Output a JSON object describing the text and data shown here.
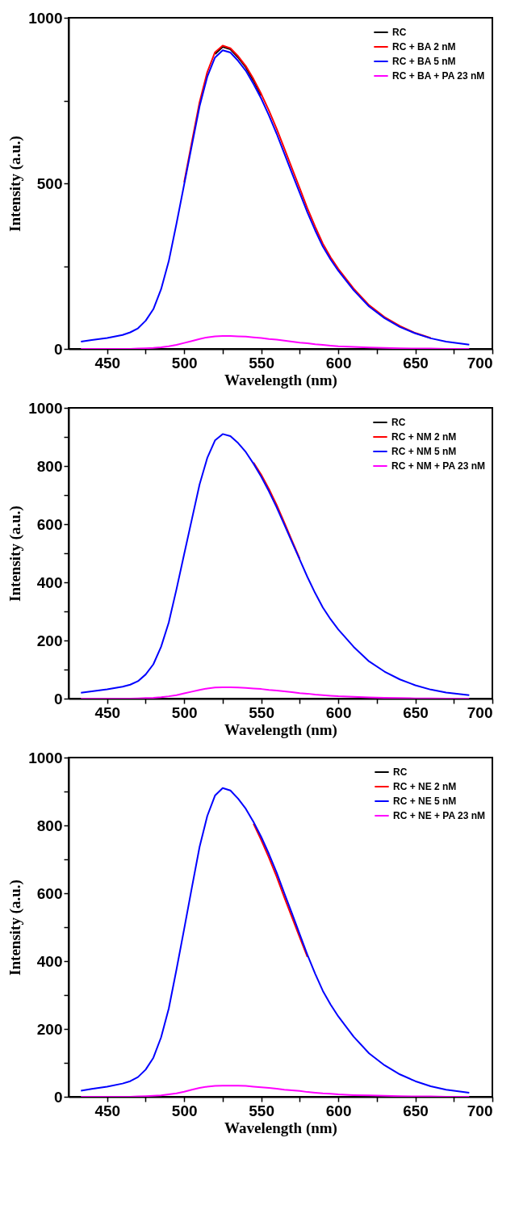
{
  "chart_data": [
    {
      "type": "line",
      "xlabel": "Wavelength (nm)",
      "ylabel": "Intensity (a.u.)",
      "legend": "top right",
      "xlim": [
        425,
        700
      ],
      "ylim": [
        0,
        1000
      ],
      "xticks": [
        450,
        {
          "value": 475,
          "label": null
        },
        500,
        {
          "value": 525,
          "label": null
        },
        550,
        {
          "value": 575,
          "label": null
        },
        600,
        {
          "value": 625,
          "label": null
        },
        650,
        {
          "value": 675,
          "label": null
        },
        700
      ],
      "yticks": [
        0,
        {
          "value": 250,
          "label": null
        },
        500,
        {
          "value": 750,
          "label": null
        },
        1000
      ],
      "x": [
        433,
        440,
        450,
        460,
        465,
        470,
        475,
        480,
        485,
        490,
        495,
        500,
        505,
        510,
        515,
        520,
        525,
        530,
        535,
        540,
        545,
        550,
        555,
        560,
        565,
        570,
        575,
        580,
        585,
        590,
        595,
        600,
        610,
        620,
        630,
        640,
        650,
        660,
        670,
        685
      ],
      "series": [
        {
          "name": "RC",
          "color": "#000000",
          "values": [
            null,
            null,
            null,
            null,
            null,
            null,
            null,
            null,
            null,
            null,
            null,
            null,
            null,
            null,
            null,
            890,
            912,
            905,
            880,
            850,
            810,
            765,
            null,
            null,
            null,
            null,
            null,
            null,
            null,
            null,
            null,
            null,
            null,
            null,
            null,
            null,
            null,
            null,
            null,
            null
          ]
        },
        {
          "name": "RC + BA 2 nM",
          "color": "#ff0000",
          "values": [
            null,
            null,
            null,
            null,
            null,
            null,
            null,
            null,
            null,
            null,
            null,
            503,
            625,
            745,
            836,
            896,
            916,
            908,
            884,
            854,
            815,
            770,
            720,
            665,
            605,
            545,
            485,
            424,
            369,
            318,
            277,
            242,
            182,
            132,
            96,
            69,
            48,
            33,
            null,
            null
          ]
        },
        {
          "name": "RC + BA 5 nM",
          "color": "#0000ff",
          "values": [
            22,
            27,
            33,
            42,
            50,
            62,
            85,
            120,
            180,
            265,
            378,
            497,
            615,
            733,
            822,
            880,
            902,
            895,
            870,
            840,
            800,
            756,
            705,
            650,
            590,
            530,
            471,
            412,
            358,
            309,
            270,
            236,
            177,
            128,
            93,
            66,
            47,
            32,
            22,
            13
          ]
        },
        {
          "name": "RC + BA + PA 23 nM",
          "color": "#ff00ff",
          "values": [
            0,
            0,
            0,
            0,
            0,
            1,
            2,
            3,
            5,
            8,
            12,
            18,
            24,
            30,
            35,
            38,
            39,
            39,
            38,
            37,
            35,
            33,
            30,
            28,
            25,
            22,
            19,
            17,
            14,
            12,
            10,
            8,
            6,
            4,
            3,
            2,
            1,
            1,
            0,
            0
          ]
        }
      ]
    },
    {
      "type": "line",
      "xlabel": "Wavelength (nm)",
      "ylabel": "Intensity (a.u.)",
      "legend": "top right",
      "xlim": [
        425,
        700
      ],
      "ylim": [
        0,
        1000
      ],
      "xticks": [
        450,
        {
          "value": 475,
          "label": null
        },
        500,
        {
          "value": 525,
          "label": null
        },
        550,
        {
          "value": 575,
          "label": null
        },
        600,
        {
          "value": 625,
          "label": null
        },
        650,
        {
          "value": 675,
          "label": null
        },
        700
      ],
      "yticks": [
        0,
        {
          "value": 100,
          "label": null
        },
        200,
        {
          "value": 300,
          "label": null
        },
        400,
        {
          "value": 500,
          "label": null
        },
        600,
        {
          "value": 700,
          "label": null
        },
        800,
        {
          "value": 900,
          "label": null
        },
        1000
      ],
      "x": [
        433,
        440,
        450,
        460,
        465,
        470,
        475,
        480,
        485,
        490,
        495,
        500,
        505,
        510,
        515,
        520,
        525,
        530,
        535,
        540,
        545,
        550,
        555,
        560,
        565,
        570,
        575,
        580,
        585,
        590,
        595,
        600,
        610,
        620,
        630,
        640,
        650,
        660,
        670,
        685
      ],
      "series": [
        {
          "name": "RC",
          "color": "#000000",
          "values": [
            null,
            null,
            null,
            null,
            null,
            null,
            null,
            null,
            null,
            null,
            null,
            null,
            null,
            null,
            null,
            null,
            null,
            null,
            null,
            null,
            null,
            null,
            null,
            null,
            null,
            null,
            null,
            null,
            null,
            null,
            null,
            null,
            null,
            null,
            null,
            null,
            null,
            null,
            null,
            null
          ]
        },
        {
          "name": "RC + NM 2 nM",
          "color": "#ff0000",
          "values": [
            null,
            null,
            null,
            null,
            null,
            null,
            null,
            null,
            null,
            null,
            null,
            null,
            null,
            null,
            null,
            null,
            null,
            null,
            null,
            null,
            812,
            770,
            721,
            666,
            605,
            543,
            481,
            null,
            null,
            null,
            null,
            null,
            null,
            null,
            null,
            null,
            null,
            null,
            null,
            null
          ]
        },
        {
          "name": "RC + NM 5 nM",
          "color": "#0000ff",
          "values": [
            20,
            25,
            32,
            41,
            48,
            60,
            83,
            118,
            178,
            262,
            376,
            497,
            617,
            737,
            828,
            888,
            910,
            903,
            879,
            848,
            808,
            763,
            713,
            658,
            598,
            538,
            478,
            418,
            363,
            313,
            273,
            238,
            178,
            128,
            93,
            66,
            46,
            31,
            21,
            12
          ]
        },
        {
          "name": "RC + NM + PA 23 nM",
          "color": "#ff00ff",
          "values": [
            0,
            0,
            0,
            0,
            0,
            1,
            2,
            3,
            5,
            8,
            12,
            18,
            24,
            30,
            35,
            38,
            39,
            39,
            38,
            37,
            35,
            33,
            30,
            28,
            25,
            22,
            19,
            17,
            14,
            12,
            10,
            8,
            6,
            4,
            3,
            2,
            1,
            1,
            0,
            0
          ]
        }
      ]
    },
    {
      "type": "line",
      "xlabel": "Wavelength (nm)",
      "ylabel": "Intensity (a.u.)",
      "legend": "top right",
      "xlim": [
        425,
        700
      ],
      "ylim": [
        0,
        1000
      ],
      "xticks": [
        450,
        {
          "value": 475,
          "label": null
        },
        500,
        {
          "value": 525,
          "label": null
        },
        550,
        {
          "value": 575,
          "label": null
        },
        600,
        {
          "value": 625,
          "label": null
        },
        650,
        {
          "value": 675,
          "label": null
        },
        700
      ],
      "yticks": [
        0,
        {
          "value": 100,
          "label": null
        },
        200,
        {
          "value": 300,
          "label": null
        },
        400,
        {
          "value": 500,
          "label": null
        },
        600,
        {
          "value": 700,
          "label": null
        },
        800,
        {
          "value": 900,
          "label": null
        },
        1000
      ],
      "x": [
        433,
        440,
        450,
        460,
        465,
        470,
        475,
        480,
        485,
        490,
        495,
        500,
        505,
        510,
        515,
        520,
        525,
        530,
        535,
        540,
        545,
        550,
        555,
        560,
        565,
        570,
        575,
        580,
        585,
        590,
        595,
        600,
        610,
        620,
        630,
        640,
        650,
        660,
        670,
        685
      ],
      "series": [
        {
          "name": "RC",
          "color": "#000000",
          "values": [
            null,
            null,
            null,
            null,
            null,
            null,
            null,
            null,
            null,
            null,
            null,
            null,
            null,
            null,
            null,
            null,
            null,
            null,
            null,
            null,
            null,
            null,
            null,
            null,
            null,
            null,
            null,
            null,
            null,
            null,
            null,
            null,
            null,
            null,
            null,
            null,
            null,
            null,
            null,
            null
          ]
        },
        {
          "name": "RC + NE 2 nM",
          "color": "#ff0000",
          "values": [
            null,
            null,
            null,
            null,
            null,
            null,
            null,
            null,
            null,
            null,
            null,
            null,
            null,
            null,
            null,
            null,
            null,
            null,
            null,
            null,
            805,
            757,
            705,
            649,
            588,
            529,
            470,
            412,
            null,
            null,
            null,
            null,
            null,
            null,
            null,
            null,
            null,
            null,
            null,
            null
          ]
        },
        {
          "name": "RC + NE 5 nM",
          "color": "#0000ff",
          "values": [
            18,
            23,
            30,
            39,
            46,
            58,
            80,
            115,
            175,
            260,
            375,
            495,
            617,
            737,
            828,
            888,
            910,
            903,
            879,
            849,
            810,
            766,
            716,
            661,
            600,
            540,
            479,
            418,
            363,
            312,
            272,
            237,
            177,
            128,
            93,
            66,
            46,
            31,
            21,
            12
          ]
        },
        {
          "name": "RC + NE + PA 23 nM",
          "color": "#ff00ff",
          "values": [
            0,
            0,
            0,
            0,
            0,
            1,
            2,
            3,
            4,
            7,
            10,
            15,
            21,
            26,
            30,
            32,
            33,
            33,
            33,
            32,
            30,
            28,
            26,
            24,
            21,
            19,
            17,
            14,
            12,
            10,
            9,
            7,
            5,
            4,
            3,
            2,
            1,
            1,
            0,
            0
          ]
        }
      ]
    }
  ]
}
